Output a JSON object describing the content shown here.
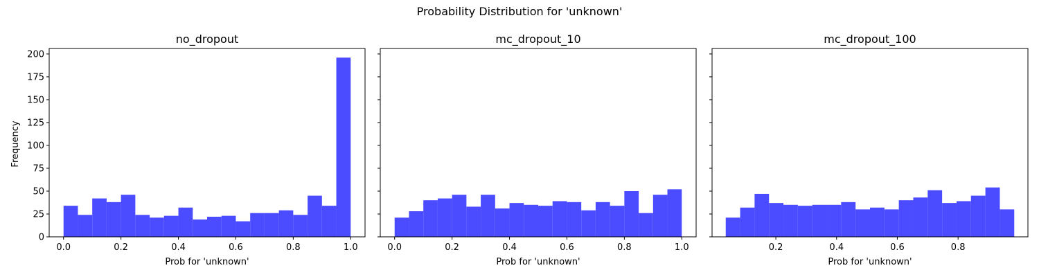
{
  "figure": {
    "suptitle": "Probability Distribution for 'unknown'",
    "ylabel": "Frequency"
  },
  "chart_data": [
    {
      "type": "bar",
      "title": "no_dropout",
      "xlabel": "Prob for 'unknown'",
      "ylabel": "Frequency",
      "xlim": [
        -0.05,
        1.05
      ],
      "ylim": [
        0,
        206
      ],
      "xticks": [
        "0.0",
        "0.2",
        "0.4",
        "0.6",
        "0.8",
        "1.0"
      ],
      "yticks": [
        "0",
        "25",
        "50",
        "75",
        "100",
        "125",
        "150",
        "175",
        "200"
      ],
      "bin_edges": [
        0.0,
        0.05,
        0.1,
        0.15,
        0.2,
        0.25,
        0.3,
        0.35,
        0.4,
        0.45,
        0.5,
        0.55,
        0.6,
        0.65,
        0.7,
        0.75,
        0.8,
        0.85,
        0.9,
        0.95,
        1.0
      ],
      "values": [
        34,
        24,
        42,
        38,
        46,
        24,
        21,
        23,
        32,
        19,
        22,
        23,
        17,
        26,
        26,
        29,
        24,
        45,
        34,
        196
      ],
      "color": "#4b4bff"
    },
    {
      "type": "bar",
      "title": "mc_dropout_10",
      "xlabel": "Prob for 'unknown'",
      "ylabel": "",
      "xlim": [
        -0.05,
        1.05
      ],
      "ylim": [
        0,
        206
      ],
      "xticks": [
        "0.0",
        "0.2",
        "0.4",
        "0.6",
        "0.8",
        "1.0"
      ],
      "yticks": [],
      "bin_edges": [
        0.0,
        0.05,
        0.1,
        0.15,
        0.2,
        0.25,
        0.3,
        0.35,
        0.4,
        0.45,
        0.5,
        0.55,
        0.6,
        0.65,
        0.7,
        0.75,
        0.8,
        0.85,
        0.9,
        0.95,
        1.0
      ],
      "values": [
        21,
        28,
        40,
        42,
        46,
        33,
        46,
        31,
        37,
        35,
        34,
        39,
        38,
        29,
        38,
        34,
        50,
        26,
        46,
        52
      ],
      "color": "#4b4bff"
    },
    {
      "type": "bar",
      "title": "mc_dropout_100",
      "xlabel": "Prob for 'unknown'",
      "ylabel": "",
      "xlim": [
        -0.01,
        1.03
      ],
      "ylim": [
        0,
        206
      ],
      "xticks": [
        "0.2",
        "0.4",
        "0.6",
        "0.8"
      ],
      "yticks": [],
      "bin_edges": [
        0.035,
        0.0825,
        0.13,
        0.1775,
        0.225,
        0.2725,
        0.32,
        0.3675,
        0.415,
        0.4625,
        0.51,
        0.5575,
        0.605,
        0.6525,
        0.7,
        0.7475,
        0.795,
        0.8425,
        0.89,
        0.9375,
        0.985
      ],
      "values": [
        21,
        32,
        47,
        37,
        35,
        34,
        35,
        35,
        38,
        30,
        32,
        30,
        40,
        43,
        51,
        37,
        39,
        45,
        54,
        30
      ],
      "color": "#4b4bff"
    }
  ]
}
